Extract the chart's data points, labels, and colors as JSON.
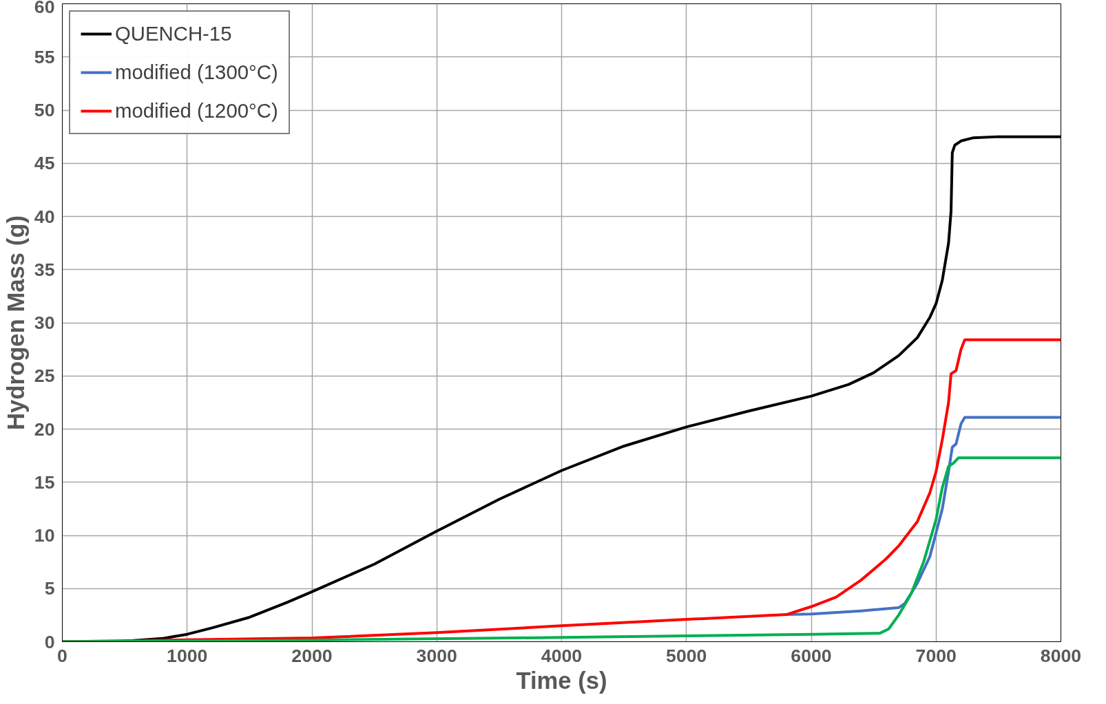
{
  "chart_data": {
    "type": "line",
    "xlabel": "Time (s)",
    "ylabel": "Hydrogen Mass (g)",
    "xlim": [
      0,
      8000
    ],
    "ylim": [
      0,
      60
    ],
    "xticks": [
      0,
      1000,
      2000,
      3000,
      4000,
      5000,
      6000,
      7000,
      8000
    ],
    "yticks": [
      0,
      5,
      10,
      15,
      20,
      25,
      30,
      35,
      40,
      45,
      50,
      55,
      60
    ],
    "grid": true,
    "legend": "top left",
    "marker": "none",
    "line_style": "solid",
    "series": [
      {
        "name": "QUENCH-15",
        "color": "#000000",
        "x": [
          0,
          500,
          800,
          1000,
          1200,
          1500,
          1800,
          2000,
          2500,
          3000,
          3500,
          4000,
          4500,
          5000,
          5500,
          6000,
          6300,
          6500,
          6700,
          6850,
          6950,
          7000,
          7050,
          7100,
          7120,
          7130,
          7150,
          7200,
          7300,
          7500,
          8000
        ],
        "values": [
          0,
          0.05,
          0.3,
          0.7,
          1.3,
          2.3,
          3.7,
          4.7,
          7.3,
          10.4,
          13.4,
          16.1,
          18.4,
          20.2,
          21.7,
          23.1,
          24.2,
          25.3,
          26.9,
          28.6,
          30.5,
          31.8,
          34,
          37.5,
          40.5,
          46,
          46.7,
          47.1,
          47.4,
          47.5,
          47.5
        ]
      },
      {
        "name": "modified (1300°C)",
        "color": "#4472c4",
        "x": [
          5800,
          6000,
          6400,
          6700,
          6750,
          6850,
          6950,
          7050,
          7100,
          7130,
          7160,
          7200,
          7230,
          8000
        ],
        "values": [
          2.55,
          2.6,
          2.9,
          3.2,
          3.6,
          5.5,
          8.0,
          12.5,
          16,
          18.3,
          18.6,
          20.5,
          21.1,
          21.1
        ]
      },
      {
        "name": "modified (1200°C)",
        "color": "#ff0000",
        "x": [
          0,
          2000,
          3000,
          4000,
          5000,
          5800,
          6000,
          6200,
          6400,
          6600,
          6700,
          6850,
          6950,
          7000,
          7050,
          7100,
          7120,
          7160,
          7200,
          7230,
          8000
        ],
        "values": [
          0,
          0.35,
          0.85,
          1.5,
          2.1,
          2.55,
          3.3,
          4.2,
          5.8,
          7.8,
          9.0,
          11.3,
          14.0,
          16.0,
          19,
          22.5,
          25.2,
          25.5,
          27.5,
          28.4,
          28.4
        ]
      },
      {
        "color": "#00b050",
        "x": [
          0,
          2000,
          4000,
          5000,
          6000,
          6550,
          6620,
          6700,
          6800,
          6900,
          7000,
          7050,
          7100,
          7140,
          7180,
          8000
        ],
        "values": [
          0,
          0.15,
          0.4,
          0.55,
          0.7,
          0.8,
          1.2,
          2.5,
          4.5,
          7.5,
          11.5,
          14.5,
          16.5,
          16.8,
          17.3,
          17.3
        ]
      }
    ]
  }
}
